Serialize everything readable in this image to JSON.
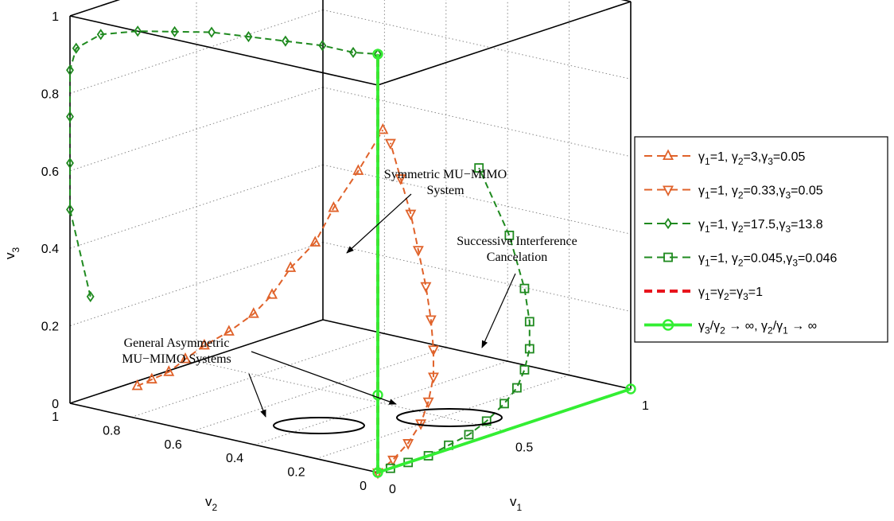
{
  "chart_data": {
    "type": "line",
    "subtype": "3d-line",
    "title": "",
    "axes": {
      "x": {
        "label": "v",
        "label_sub": "1",
        "range": [
          0,
          1
        ],
        "ticks": [
          "0",
          "0.5",
          "1"
        ]
      },
      "y": {
        "label": "v",
        "label_sub": "2",
        "range": [
          0,
          1
        ],
        "ticks": [
          "0",
          "0.2",
          "0.4",
          "0.6",
          "0.8",
          "1"
        ]
      },
      "z": {
        "label": "v",
        "label_sub": "3",
        "range": [
          0,
          1
        ],
        "ticks": [
          "0",
          "0.2",
          "0.4",
          "0.6",
          "0.8",
          "1"
        ]
      }
    },
    "grid": true,
    "box": true,
    "legend_position": "right",
    "series": [
      {
        "name": "γ1=1, γ2=3,γ3=0.05",
        "legend": [
          [
            "γ",
            ""
          ],
          [
            "1",
            "sub"
          ],
          [
            "=1, ",
            ""
          ],
          [
            "γ",
            ""
          ],
          [
            "2",
            "sub"
          ],
          [
            "=3,",
            ""
          ],
          [
            "γ",
            ""
          ],
          [
            "3",
            "sub"
          ],
          [
            "=0.05",
            ""
          ]
        ],
        "color": "#e0622a",
        "dash": "dashed",
        "marker": "triangle-up",
        "points": [
          [
            0.12,
            0.88,
            0.04
          ],
          [
            0.08,
            0.8,
            0.08
          ],
          [
            0.05,
            0.72,
            0.12
          ],
          [
            0.03,
            0.65,
            0.17
          ],
          [
            0.02,
            0.58,
            0.22
          ],
          [
            0.02,
            0.5,
            0.27
          ],
          [
            0.02,
            0.42,
            0.33
          ],
          [
            0.02,
            0.36,
            0.39
          ],
          [
            0.02,
            0.3,
            0.47
          ],
          [
            0.02,
            0.22,
            0.55
          ],
          [
            0.02,
            0.16,
            0.65
          ],
          [
            0.02,
            0.08,
            0.76
          ],
          [
            0.02,
            0.0,
            0.88
          ]
        ]
      },
      {
        "name": "γ1=1, γ2=0.33,γ3=0.05",
        "legend": [
          [
            "γ",
            ""
          ],
          [
            "1",
            "sub"
          ],
          [
            "=1, ",
            ""
          ],
          [
            "γ",
            ""
          ],
          [
            "2",
            "sub"
          ],
          [
            "=0.33,",
            ""
          ],
          [
            "γ",
            ""
          ],
          [
            "3",
            "sub"
          ],
          [
            "=0.05",
            ""
          ]
        ],
        "color": "#e0622a",
        "dash": "dashed",
        "marker": "triangle-down",
        "points": [
          [
            0.0,
            0.0,
            0.0
          ],
          [
            0.06,
            0.0,
            0.02
          ],
          [
            0.12,
            0.0,
            0.05
          ],
          [
            0.17,
            0.0,
            0.09
          ],
          [
            0.2,
            0.0,
            0.14
          ],
          [
            0.22,
            0.0,
            0.2
          ],
          [
            0.22,
            0.0,
            0.27
          ],
          [
            0.21,
            0.0,
            0.35
          ],
          [
            0.19,
            0.0,
            0.44
          ],
          [
            0.16,
            0.0,
            0.54
          ],
          [
            0.13,
            0.0,
            0.64
          ],
          [
            0.09,
            0.0,
            0.74
          ],
          [
            0.05,
            0.0,
            0.84
          ]
        ]
      },
      {
        "name": "γ1=1, γ2=17.5,γ3=13.8",
        "legend": [
          [
            "γ",
            ""
          ],
          [
            "1",
            "sub"
          ],
          [
            "=1, ",
            ""
          ],
          [
            "γ",
            ""
          ],
          [
            "2",
            "sub"
          ],
          [
            "=17.5,",
            ""
          ],
          [
            "γ",
            ""
          ],
          [
            "3",
            "sub"
          ],
          [
            "=13.8",
            ""
          ]
        ],
        "color": "#1f8a1f",
        "dash": "dashed",
        "marker": "diamond",
        "points": [
          [
            0.02,
            0.95,
            0.28
          ],
          [
            0.0,
            1.0,
            0.5
          ],
          [
            0.0,
            1.0,
            0.62
          ],
          [
            0.0,
            1.0,
            0.74
          ],
          [
            0.0,
            1.0,
            0.86
          ],
          [
            0.0,
            0.98,
            0.92
          ],
          [
            0.0,
            0.9,
            0.97
          ],
          [
            0.0,
            0.78,
            1.0
          ],
          [
            0.0,
            0.66,
            1.02
          ],
          [
            0.0,
            0.54,
            1.04
          ],
          [
            0.0,
            0.42,
            1.05
          ],
          [
            0.0,
            0.3,
            1.06
          ],
          [
            0.0,
            0.18,
            1.07
          ],
          [
            0.0,
            0.08,
            1.07
          ],
          [
            0.0,
            0.0,
            1.08
          ]
        ]
      },
      {
        "name": "γ1=1, γ2=0.045,γ3=0.046",
        "legend": [
          [
            "γ",
            ""
          ],
          [
            "1",
            "sub"
          ],
          [
            "=1, ",
            ""
          ],
          [
            "γ",
            ""
          ],
          [
            "2",
            "sub"
          ],
          [
            "=0.045,",
            ""
          ],
          [
            "γ",
            ""
          ],
          [
            "3",
            "sub"
          ],
          [
            "=0.046",
            ""
          ]
        ],
        "color": "#1f8a1f",
        "dash": "dashed",
        "marker": "square",
        "points": [
          [
            0.05,
            0.0,
            0.0
          ],
          [
            0.12,
            0.0,
            0.0
          ],
          [
            0.2,
            0.0,
            0.0
          ],
          [
            0.28,
            0.0,
            0.01
          ],
          [
            0.36,
            0.0,
            0.02
          ],
          [
            0.43,
            0.0,
            0.04
          ],
          [
            0.5,
            0.0,
            0.07
          ],
          [
            0.55,
            0.0,
            0.1
          ],
          [
            0.58,
            0.0,
            0.14
          ],
          [
            0.6,
            0.0,
            0.19
          ],
          [
            0.6,
            0.0,
            0.26
          ],
          [
            0.58,
            0.0,
            0.35
          ],
          [
            0.52,
            0.0,
            0.5
          ],
          [
            0.4,
            0.0,
            0.7
          ]
        ]
      },
      {
        "name": "γ1=γ2=γ3=1",
        "legend": [
          [
            "γ",
            ""
          ],
          [
            "1",
            "sub"
          ],
          [
            "=",
            ""
          ],
          [
            "γ",
            ""
          ],
          [
            "2",
            "sub"
          ],
          [
            "=",
            ""
          ],
          [
            "γ",
            ""
          ],
          [
            "3",
            "sub"
          ],
          [
            "=1",
            ""
          ]
        ],
        "color": "#e8141c",
        "dash": "dashed-bold",
        "marker": "none",
        "points": [
          [
            0.0,
            0.0,
            0.0
          ],
          [
            0.0,
            0.0,
            1.08
          ]
        ]
      },
      {
        "name": "γ3/γ2 → ∞, γ2/γ1 → ∞",
        "legend": [
          [
            "γ",
            ""
          ],
          [
            "3",
            "sub"
          ],
          [
            "/",
            ""
          ],
          [
            "γ",
            ""
          ],
          [
            "2",
            "sub"
          ],
          [
            " → ∞, ",
            ""
          ],
          [
            "γ",
            ""
          ],
          [
            "2",
            "sub"
          ],
          [
            "/",
            ""
          ],
          [
            "γ",
            ""
          ],
          [
            "1",
            "sub"
          ],
          [
            " → ∞",
            ""
          ]
        ],
        "color": "#33ee33",
        "dash": "solid",
        "marker": "circle",
        "points": [
          [
            0.0,
            0.0,
            0.0
          ],
          [
            1.0,
            0.0,
            0.0
          ],
          [
            0.0,
            0.0,
            0.0
          ],
          [
            0.0,
            0.0,
            1.08
          ]
        ]
      }
    ],
    "annotations": [
      {
        "text": [
          "Symmetric MU−MIMO",
          "System"
        ]
      },
      {
        "text": [
          "Successive Interference",
          "Cancelation"
        ]
      },
      {
        "text": [
          "General Asymmetric",
          "MU−MIMO Systems"
        ]
      }
    ]
  }
}
